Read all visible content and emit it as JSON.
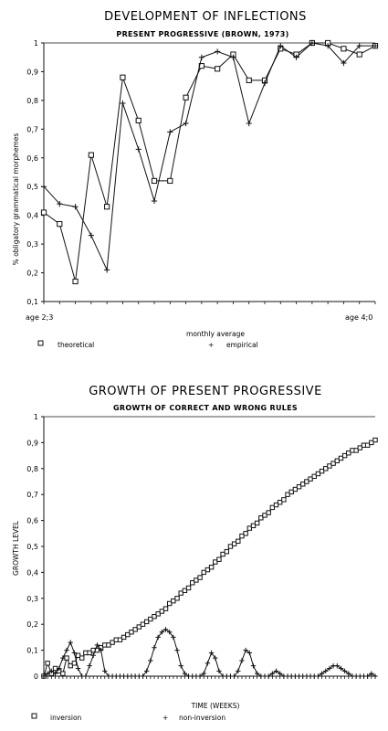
{
  "chart_data": [
    {
      "type": "line",
      "title": "DEVELOPMENT OF INFLECTIONS",
      "subtitle": "PRESENT PROGRESSIVE (BROWN, 1973)",
      "xlabel": "monthly average",
      "ylabel": "% obligatory grammatical morphemes",
      "x_start_label": "age 2;3",
      "x_end_label": "age 4;0",
      "ylim": [
        0.1,
        1
      ],
      "yticks": [
        "0,1",
        "0,2",
        "0,3",
        "0,4",
        "0,5",
        "0,6",
        "0,7",
        "0,8",
        "0,9",
        "1"
      ],
      "n_points": 22,
      "series": [
        {
          "name": "theoretical",
          "marker": "square",
          "values": [
            0.41,
            0.37,
            0.17,
            0.61,
            0.43,
            0.88,
            0.73,
            0.52,
            0.52,
            0.81,
            0.92,
            0.91,
            0.96,
            0.87,
            0.87,
            0.98,
            0.96,
            1.0,
            1.0,
            0.98,
            0.96,
            0.99
          ]
        },
        {
          "name": "empirical",
          "marker": "plus",
          "values": [
            0.5,
            0.44,
            0.43,
            0.33,
            0.21,
            0.79,
            0.63,
            0.45,
            0.69,
            0.72,
            0.95,
            0.97,
            0.95,
            0.72,
            0.86,
            0.99,
            0.95,
            1.0,
            0.99,
            0.93,
            0.99,
            0.99
          ]
        }
      ]
    },
    {
      "type": "line",
      "title": "GROWTH OF PRESENT PROGRESSIVE",
      "subtitle": "GROWTH OF CORRECT AND WRONG RULES",
      "xlabel": "TIME (WEEKS)",
      "ylabel": "GROWTH LEVEL",
      "ylim": [
        0,
        1
      ],
      "yticks": [
        "0",
        "0,1",
        "0,2",
        "0,3",
        "0,4",
        "0,5",
        "0,6",
        "0,7",
        "0,8",
        "0,9",
        "1"
      ],
      "series": [
        {
          "name": "inversion",
          "marker": "square",
          "values": [
            0.0,
            0.05,
            0.01,
            0.03,
            0.02,
            0.01,
            0.07,
            0.04,
            0.05,
            0.08,
            0.07,
            0.09,
            0.09,
            0.1,
            0.1,
            0.11,
            0.12,
            0.12,
            0.13,
            0.14,
            0.14,
            0.15,
            0.16,
            0.17,
            0.18,
            0.19,
            0.2,
            0.21,
            0.22,
            0.23,
            0.24,
            0.25,
            0.26,
            0.28,
            0.29,
            0.3,
            0.32,
            0.33,
            0.34,
            0.36,
            0.37,
            0.38,
            0.4,
            0.41,
            0.42,
            0.44,
            0.45,
            0.47,
            0.48,
            0.5,
            0.51,
            0.52,
            0.54,
            0.55,
            0.57,
            0.58,
            0.59,
            0.61,
            0.62,
            0.63,
            0.65,
            0.66,
            0.67,
            0.68,
            0.7,
            0.71,
            0.72,
            0.73,
            0.74,
            0.75,
            0.76,
            0.77,
            0.78,
            0.79,
            0.8,
            0.81,
            0.82,
            0.83,
            0.84,
            0.85,
            0.86,
            0.87,
            0.87,
            0.88,
            0.89,
            0.89,
            0.9,
            0.91
          ]
        },
        {
          "name": "non-inversion",
          "marker": "plus",
          "values": [
            0.0,
            0.01,
            0.02,
            0.01,
            0.03,
            0.07,
            0.1,
            0.13,
            0.09,
            0.03,
            0.0,
            0.0,
            0.04,
            0.08,
            0.12,
            0.1,
            0.02,
            0.0,
            0.0,
            0.0,
            0.0,
            0.0,
            0.0,
            0.0,
            0.0,
            0.0,
            0.0,
            0.02,
            0.06,
            0.11,
            0.15,
            0.17,
            0.18,
            0.17,
            0.15,
            0.1,
            0.04,
            0.01,
            0.0,
            0.0,
            0.0,
            0.0,
            0.01,
            0.05,
            0.09,
            0.07,
            0.02,
            0.0,
            0.0,
            0.0,
            0.0,
            0.02,
            0.06,
            0.1,
            0.09,
            0.04,
            0.01,
            0.0,
            0.0,
            0.0,
            0.01,
            0.02,
            0.01,
            0.0,
            0.0,
            0.0,
            0.0,
            0.0,
            0.0,
            0.0,
            0.0,
            0.0,
            0.0,
            0.01,
            0.02,
            0.03,
            0.04,
            0.04,
            0.03,
            0.02,
            0.01,
            0.0,
            0.0,
            0.0,
            0.0,
            0.0,
            0.01,
            0.0
          ]
        }
      ]
    }
  ]
}
